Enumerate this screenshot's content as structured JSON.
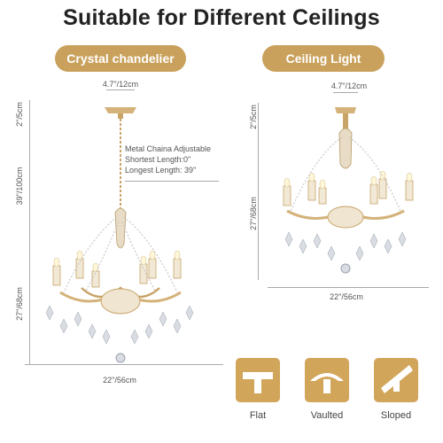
{
  "headline": "Suitable for Different Ceilings",
  "left": {
    "badge": "Crystal chandelier",
    "canopy_width": "4.7\"/12cm",
    "canopy_height": "2\"/5cm",
    "chain_length": "39\"/100cm",
    "body_height": "27\"/68cm",
    "width": "22\"/56cm",
    "chain_note": [
      "Metal Chaina Adjustable",
      "Shortest Length:0\"",
      "Longest Length: 39\""
    ]
  },
  "right": {
    "badge": "Ceiling Light",
    "canopy_width": "4.7\"/12cm",
    "canopy_height": "2\"/5cm",
    "body_height": "27\"/68cm",
    "width": "22\"/56cm"
  },
  "ceilings": [
    {
      "label": "Flat",
      "icon": "flat-ceiling-icon"
    },
    {
      "label": "Vaulted",
      "icon": "vaulted-ceiling-icon"
    },
    {
      "label": "Sloped",
      "icon": "sloped-ceiling-icon"
    }
  ],
  "colors": {
    "accent": "#c9a15c",
    "gold": "#d4b27a"
  }
}
